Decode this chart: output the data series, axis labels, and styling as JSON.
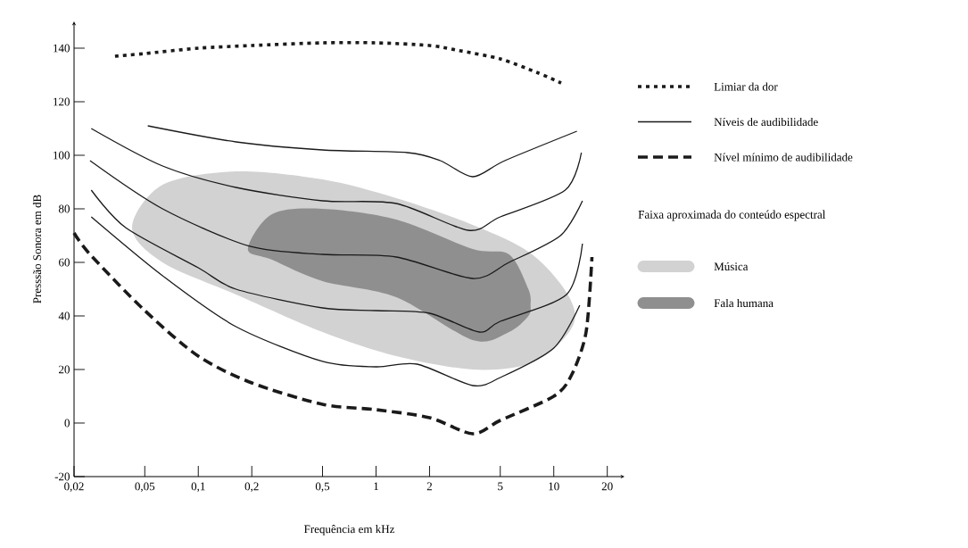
{
  "chart_data": {
    "type": "line",
    "xlabel": "Frequência em kHz",
    "ylabel": "Presssão Sonora em dB",
    "legend_title": "Faixa aproximada do conteúdo espectral",
    "legend": "right",
    "log": "x",
    "xlim": [
      0.02,
      25
    ],
    "ylim": [
      -20,
      150
    ],
    "xticks": [
      {
        "value": 0.02,
        "label": "0,02"
      },
      {
        "value": 0.05,
        "label": "0,05"
      },
      {
        "value": 0.1,
        "label": "0,1"
      },
      {
        "value": 0.2,
        "label": "0,2"
      },
      {
        "value": 0.5,
        "label": "0,5"
      },
      1,
      2,
      5,
      10,
      20
    ],
    "yticks": [
      -20,
      0,
      20,
      40,
      60,
      80,
      100,
      120,
      140
    ],
    "series": [
      {
        "name": "Música",
        "type": "area",
        "color": "#d2d2d2",
        "x": [
          0.0424,
          0.063,
          0.163,
          0.5,
          1.3,
          3.5,
          7.2,
          11.2,
          13.2,
          11.2,
          7.2,
          3.5,
          1.3,
          0.5,
          0.163,
          0.063
        ],
        "values": [
          73,
          89,
          94,
          91,
          84,
          74,
          64,
          51,
          40,
          31,
          22,
          20,
          25,
          34,
          48,
          60
        ]
      },
      {
        "name": "Fala humana",
        "type": "area",
        "color": "#8f8f8f",
        "x": [
          0.19,
          0.26,
          0.5,
          1.3,
          3.5,
          5.6,
          7.2,
          7.4,
          7.2,
          5.6,
          3.5,
          1.3,
          0.5,
          0.26
        ],
        "values": [
          65,
          78,
          80,
          76,
          65,
          63,
          50,
          44,
          40,
          34,
          31,
          47,
          53,
          61
        ]
      },
      {
        "name": "Limiar da dor",
        "color": "#1a1a1a",
        "line_style": "dotted",
        "x": [
          0.034,
          0.05,
          0.1,
          0.2,
          0.5,
          1,
          2,
          3,
          5,
          8,
          11
        ],
        "values": [
          137,
          138,
          140,
          141,
          142,
          142,
          141,
          139,
          136,
          131,
          127
        ]
      },
      {
        "name": "Níveis de audibilidade",
        "color": "#1a1a1a",
        "line_style": "solid",
        "x": [
          0.025,
          0.063,
          0.163,
          0.5,
          1,
          1.7,
          3.5,
          5,
          10,
          14
        ],
        "values": [
          77,
          55,
          36,
          23,
          21,
          22,
          14,
          17,
          28,
          44
        ]
      },
      {
        "color": "#1a1a1a",
        "line_style": "solid",
        "x": [
          0.025,
          0.039,
          0.1,
          0.163,
          0.5,
          1,
          2,
          3.8,
          5,
          11.8,
          14.5
        ],
        "values": [
          87,
          73,
          58,
          50,
          43,
          42,
          41,
          34,
          38,
          48,
          67
        ]
      },
      {
        "color": "#1a1a1a",
        "line_style": "solid",
        "x": [
          0.0246,
          0.063,
          0.195,
          0.5,
          1.3,
          3.5,
          5.6,
          10.9,
          14.5
        ],
        "values": [
          98,
          80,
          66,
          63,
          62,
          54,
          60,
          70,
          83
        ]
      },
      {
        "color": "#1a1a1a",
        "line_style": "solid",
        "x": [
          0.025,
          0.063,
          0.163,
          0.5,
          1.3,
          3.3,
          5,
          11.6,
          14.3
        ],
        "values": [
          110,
          96,
          88,
          83,
          82,
          72,
          77,
          87,
          101
        ]
      },
      {
        "color": "#1a1a1a",
        "line_style": "solid",
        "x": [
          0.052,
          0.163,
          0.5,
          1.5,
          2.3,
          3.5,
          5.3,
          13.5
        ],
        "values": [
          111,
          105,
          102,
          101,
          98,
          92,
          98,
          109
        ]
      },
      {
        "name": "Nível mínimo de audibilidade",
        "color": "#1a1a1a",
        "line_style": "dashed",
        "x": [
          0.02,
          0.0246,
          0.05,
          0.1,
          0.2,
          0.5,
          1,
          2,
          3.5,
          5,
          10,
          12.6,
          15.2,
          16.4
        ],
        "values": [
          71,
          63,
          42,
          25,
          15,
          7,
          5,
          2,
          -4,
          1,
          10,
          18,
          34,
          62
        ]
      }
    ]
  }
}
